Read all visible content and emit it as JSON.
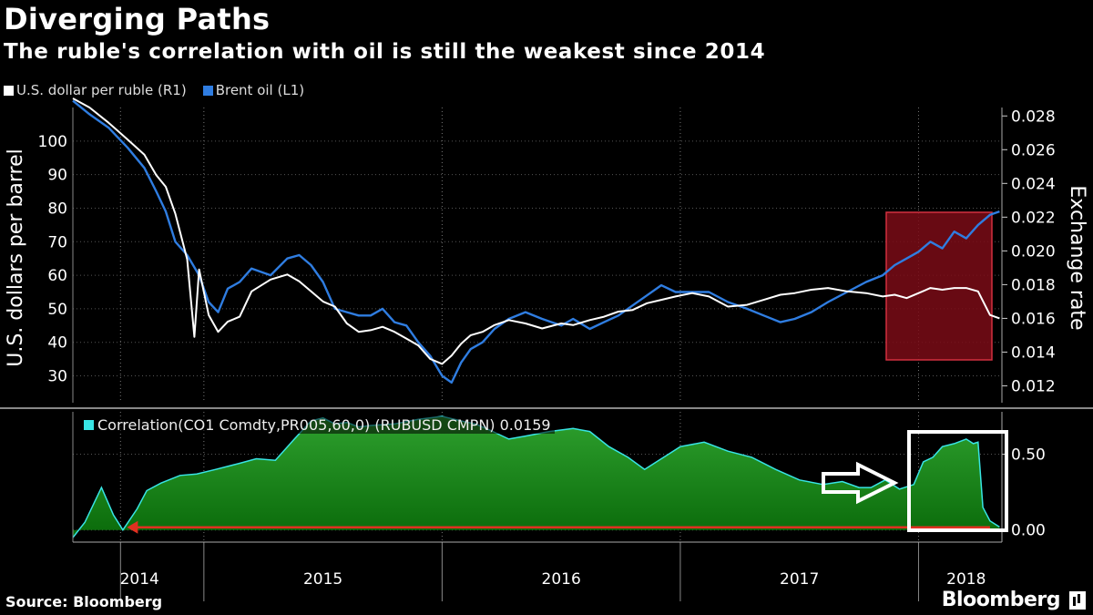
{
  "title": "Diverging Paths",
  "subtitle": "The ruble's correlation with oil is still the weakest since 2014",
  "source": "Source: Bloomberg",
  "brand": "Bloomberg",
  "colors": {
    "ruble": "#ffffff",
    "oil": "#2f7de1",
    "correlation_fill": "#0f7f10",
    "correlation_line": "#38e4e4",
    "highlight_box": "#7a0c16",
    "arrow": "#e03020"
  },
  "chart_data": [
    {
      "type": "line",
      "legend": [
        {
          "name": "U.S. dollar per ruble (R1)",
          "color": "#ffffff"
        },
        {
          "name": "Brent oil (L1)",
          "color": "#2f7de1"
        }
      ],
      "ylabel_left": "U.S. dollars per barrel",
      "ylabel_right": "Exchange rate",
      "ylim_left": [
        22,
        110
      ],
      "ylim_right": [
        0.011,
        0.0285
      ],
      "yticks_left": [
        "100",
        "90",
        "80",
        "70",
        "60",
        "50",
        "40",
        "30"
      ],
      "yticks_right": [
        "0.028",
        "0.026",
        "0.024",
        "0.022",
        "0.020",
        "0.018",
        "0.016",
        "0.014",
        "0.012"
      ],
      "x_labels": [
        "2014",
        "2015",
        "2016",
        "2017",
        "2018"
      ],
      "x_range": [
        2014.45,
        2018.35
      ],
      "series": [
        {
          "name": "Brent oil (L1)",
          "axis": "left",
          "x": [
            2014.45,
            2014.52,
            2014.6,
            2014.68,
            2014.75,
            2014.8,
            2014.84,
            2014.88,
            2014.93,
            2014.98,
            2015.02,
            2015.06,
            2015.1,
            2015.15,
            2015.2,
            2015.28,
            2015.35,
            2015.4,
            2015.45,
            2015.5,
            2015.55,
            2015.6,
            2015.65,
            2015.7,
            2015.75,
            2015.8,
            2015.85,
            2015.9,
            2015.95,
            2016.0,
            2016.04,
            2016.08,
            2016.12,
            2016.17,
            2016.22,
            2016.28,
            2016.35,
            2016.42,
            2016.5,
            2016.55,
            2016.62,
            2016.68,
            2016.74,
            2016.8,
            2016.86,
            2016.92,
            2016.98,
            2017.05,
            2017.12,
            2017.2,
            2017.28,
            2017.35,
            2017.42,
            2017.48,
            2017.55,
            2017.62,
            2017.7,
            2017.78,
            2017.85,
            2017.9,
            2017.95,
            2018.0,
            2018.05,
            2018.1,
            2018.15,
            2018.2,
            2018.25,
            2018.3,
            2018.34
          ],
          "values": [
            112,
            108,
            104,
            98,
            92,
            85,
            79,
            70,
            66,
            60,
            52,
            49,
            56,
            58,
            62,
            60,
            65,
            66,
            63,
            58,
            50,
            49,
            48,
            48,
            50,
            46,
            45,
            40,
            36,
            30,
            28,
            34,
            38,
            40,
            44,
            47,
            49,
            47,
            45,
            47,
            44,
            46,
            48,
            51,
            54,
            57,
            55,
            55,
            55,
            52,
            50,
            48,
            46,
            47,
            49,
            52,
            55,
            58,
            60,
            63,
            65,
            67,
            70,
            68,
            73,
            71,
            75,
            78,
            79
          ]
        },
        {
          "name": "U.S. dollar per ruble (R1)",
          "axis": "right",
          "x": [
            2014.45,
            2014.52,
            2014.6,
            2014.68,
            2014.75,
            2014.8,
            2014.84,
            2014.88,
            2014.93,
            2014.96,
            2014.98,
            2015.02,
            2015.06,
            2015.1,
            2015.15,
            2015.2,
            2015.28,
            2015.35,
            2015.4,
            2015.45,
            2015.5,
            2015.55,
            2015.6,
            2015.65,
            2015.7,
            2015.75,
            2015.8,
            2015.85,
            2015.9,
            2015.95,
            2016.0,
            2016.04,
            2016.08,
            2016.12,
            2016.17,
            2016.22,
            2016.28,
            2016.35,
            2016.42,
            2016.5,
            2016.55,
            2016.62,
            2016.68,
            2016.74,
            2016.8,
            2016.86,
            2016.92,
            2016.98,
            2017.05,
            2017.12,
            2017.2,
            2017.28,
            2017.35,
            2017.42,
            2017.48,
            2017.55,
            2017.62,
            2017.7,
            2017.78,
            2017.85,
            2017.9,
            2017.95,
            2018.0,
            2018.05,
            2018.1,
            2018.15,
            2018.2,
            2018.25,
            2018.3,
            2018.34
          ],
          "values": [
            0.0292,
            0.0285,
            0.0276,
            0.0266,
            0.0257,
            0.0245,
            0.0238,
            0.0222,
            0.0195,
            0.0149,
            0.0189,
            0.0162,
            0.0152,
            0.0158,
            0.0161,
            0.0176,
            0.0183,
            0.0186,
            0.0182,
            0.0176,
            0.017,
            0.0167,
            0.0157,
            0.0152,
            0.0153,
            0.0155,
            0.0152,
            0.0148,
            0.0144,
            0.0136,
            0.0133,
            0.0138,
            0.0145,
            0.015,
            0.0152,
            0.0156,
            0.0159,
            0.0157,
            0.0154,
            0.0157,
            0.0156,
            0.0159,
            0.0161,
            0.0164,
            0.0165,
            0.0169,
            0.0171,
            0.0173,
            0.0175,
            0.0173,
            0.0167,
            0.0168,
            0.0171,
            0.0174,
            0.0175,
            0.0177,
            0.0178,
            0.0176,
            0.0175,
            0.0173,
            0.0174,
            0.0172,
            0.0175,
            0.0178,
            0.0177,
            0.0178,
            0.0178,
            0.0176,
            0.0162,
            0.016
          ]
        }
      ],
      "annotations": [
        "highlighted region 2017.9 – 2018.35 (red box)"
      ]
    },
    {
      "type": "area",
      "legend": [
        {
          "name": "Correlation(CO1 Comdty,PR005,60,0) (RUBUSD CMPN) 0.0159",
          "color": "#38e4e4"
        }
      ],
      "ylim": [
        -0.08,
        0.78
      ],
      "yticks": [
        "0.50",
        "0.00"
      ],
      "x_range": [
        2014.45,
        2018.35
      ],
      "x": [
        2014.45,
        2014.5,
        2014.57,
        2014.62,
        2014.66,
        2014.72,
        2014.76,
        2014.82,
        2014.9,
        2014.97,
        2015.05,
        2015.15,
        2015.22,
        2015.3,
        2015.38,
        2015.45,
        2015.5,
        2015.55,
        2015.6,
        2015.65,
        2015.7,
        2015.8,
        2015.9,
        2016.0,
        2016.08,
        2016.14,
        2016.2,
        2016.28,
        2016.35,
        2016.45,
        2016.55,
        2016.62,
        2016.7,
        2016.78,
        2016.85,
        2016.9,
        2016.95,
        2017.0,
        2017.1,
        2017.2,
        2017.3,
        2017.4,
        2017.5,
        2017.6,
        2017.68,
        2017.75,
        2017.8,
        2017.86,
        2017.92,
        2017.98,
        2018.02,
        2018.06,
        2018.1,
        2018.15,
        2018.2,
        2018.23,
        2018.25,
        2018.27,
        2018.3,
        2018.34
      ],
      "values": [
        -0.05,
        0.05,
        0.28,
        0.1,
        0.0,
        0.14,
        0.26,
        0.31,
        0.36,
        0.37,
        0.4,
        0.44,
        0.47,
        0.46,
        0.6,
        0.72,
        0.74,
        0.7,
        0.71,
        0.68,
        0.69,
        0.7,
        0.73,
        0.75,
        0.72,
        0.7,
        0.66,
        0.6,
        0.62,
        0.65,
        0.67,
        0.65,
        0.55,
        0.48,
        0.4,
        0.45,
        0.5,
        0.55,
        0.58,
        0.52,
        0.48,
        0.4,
        0.33,
        0.3,
        0.32,
        0.28,
        0.28,
        0.33,
        0.27,
        0.3,
        0.45,
        0.48,
        0.55,
        0.57,
        0.6,
        0.57,
        0.58,
        0.15,
        0.06,
        0.02
      ],
      "annotations": [
        "red arrow pointing left along 0.00 to 2014",
        "white arrow pointing right toward highlighted 2018 section",
        "white box around 2018 drop"
      ]
    }
  ]
}
